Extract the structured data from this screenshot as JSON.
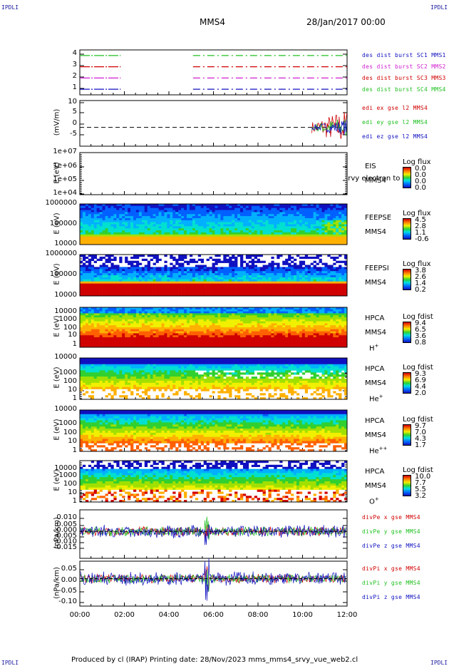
{
  "page": {
    "corner_left": "IPDLI",
    "corner_right": "IPDLI",
    "title": "MMS4",
    "date": "28/Jan/2017 00:00",
    "footer": "Produced by cl (IRAP)   Printing date: 28/Nov/2023   mms_mms4_srvy_vue_web2.cl"
  },
  "colors": {
    "red": "#d00000",
    "green": "#20c020",
    "blue": "#1010c0",
    "magenta": "#d020d0",
    "orange": "#ff8000",
    "yellow": "#f0f000"
  },
  "x_ticks": [
    "00:00",
    "02:00",
    "04:00",
    "06:00",
    "08:00",
    "10:00",
    "12:00"
  ],
  "panels": [
    {
      "id": "burst",
      "ylabel": "",
      "yticks": [
        "4",
        "3",
        "2",
        "1"
      ],
      "legend": [
        {
          "text": "des dist burst SC1 MMS1",
          "color": "#1010c0"
        },
        {
          "text": "des dist burst SC2 MMS2",
          "color": "#d020d0"
        },
        {
          "text": "des dist burst SC3 MMS3",
          "color": "#d00000"
        },
        {
          "text": "des dist burst SC4 MMS4",
          "color": "#20c020"
        }
      ]
    },
    {
      "id": "edi",
      "ylabel": "(mV/m)",
      "yticks": [
        "10",
        "5",
        "0",
        "-5"
      ],
      "legend": [
        {
          "text": "edi ex gse l2 MMS4",
          "color": "#d00000"
        },
        {
          "text": "edi ey gse l2 MMS4",
          "color": "#20c020"
        },
        {
          "text": "edi ez gse l2 MMS4",
          "color": "#1010c0"
        }
      ]
    },
    {
      "id": "eis",
      "ylabel": "E (eV)",
      "yticks": [
        "1e+07",
        "1e+06",
        "1e+05",
        "1e+04"
      ],
      "inst": [
        "EIS",
        "MMS4"
      ],
      "overlay": "srvy electron to",
      "cb_title": "Log flux",
      "cb_values": [
        "0.0",
        "0.0",
        "0.0",
        "0.0"
      ]
    },
    {
      "id": "feeps_e",
      "ylabel": "E (eV)",
      "yticks": [
        "1000000",
        "100000",
        "10000"
      ],
      "inst": [
        "FEEPSE",
        "MMS4"
      ],
      "cb_title": "Log flux",
      "cb_values": [
        "4.5",
        "2.8",
        "1.1",
        "-0.6"
      ]
    },
    {
      "id": "feeps_i",
      "ylabel": "E (eV)",
      "yticks": [
        "1000000",
        "100000",
        "10000"
      ],
      "inst": [
        "FEEPSI",
        "MMS4"
      ],
      "cb_title": "Log flux",
      "cb_values": [
        "3.8",
        "2.6",
        "1.4",
        "0.2"
      ]
    },
    {
      "id": "hpca_h",
      "ylabel": "E (eV)",
      "yticks": [
        "10000",
        "1000",
        "100",
        "10",
        "1"
      ],
      "inst": [
        "HPCA",
        "MMS4"
      ],
      "species": "H",
      "charge": "+",
      "cb_title": "Log fdist",
      "cb_values": [
        "9.4",
        "6.5",
        "3.6",
        "0.8"
      ]
    },
    {
      "id": "hpca_he",
      "ylabel": "E (eV)",
      "yticks": [
        "10000",
        "1000",
        "100",
        "10",
        "1"
      ],
      "inst": [
        "HPCA",
        "MMS4"
      ],
      "species": "He",
      "charge": "+",
      "cb_title": "Log fdist",
      "cb_values": [
        "9.3",
        "6.9",
        "4.4",
        "2.0"
      ]
    },
    {
      "id": "hpca_hepp",
      "ylabel": "E (eV)",
      "yticks": [
        "10000",
        "1000",
        "100",
        "10",
        "1"
      ],
      "inst": [
        "HPCA",
        "MMS4"
      ],
      "species": "He",
      "charge": "++",
      "cb_title": "Log fdist",
      "cb_values": [
        "9.7",
        "7.0",
        "4.3",
        "1.7"
      ]
    },
    {
      "id": "hpca_o",
      "ylabel": "E (eV)",
      "yticks": [
        "10000",
        "1000",
        "100",
        "10",
        "1"
      ],
      "inst": [
        "HPCA",
        "MMS4"
      ],
      "species": "O",
      "charge": "+",
      "cb_title": "Log fdist",
      "cb_values": [
        "10.0",
        "7.7",
        "5.5",
        "3.2"
      ]
    },
    {
      "id": "divpe",
      "ylabel": "(nPa/km)",
      "yticks": [
        "0.010",
        "0.005",
        "0.000",
        "-0.005",
        "-0.010",
        "-0.015"
      ],
      "legend": [
        {
          "text": "divPe x gse MMS4",
          "color": "#d00000"
        },
        {
          "text": "divPe y gse MMS4",
          "color": "#20c020"
        },
        {
          "text": "divPe z gse MMS4",
          "color": "#1010c0"
        }
      ]
    },
    {
      "id": "divpi",
      "ylabel": "(nPa/km)",
      "yticks": [
        "0.05",
        "0.00",
        "-0.05",
        "-0.10"
      ],
      "legend": [
        {
          "text": "divPi x gse MMS4",
          "color": "#d00000"
        },
        {
          "text": "divPi y gse MMS4",
          "color": "#20c020"
        },
        {
          "text": "divPi z gse MMS4",
          "color": "#1010c0"
        }
      ]
    }
  ],
  "chart_data": {
    "type": "heatmap",
    "x_range": [
      "00:00",
      "12:00"
    ],
    "panels": [
      {
        "id": "burst",
        "type": "line",
        "yrange": [
          0.5,
          4.5
        ],
        "series": [
          {
            "name": "des dist burst SC1 MMS1",
            "y": 1,
            "intervals": [
              [
                "00:00",
                "01:50"
              ],
              [
                "05:05",
                "12:00"
              ]
            ]
          },
          {
            "name": "des dist burst SC2 MMS2",
            "y": 2,
            "intervals": [
              [
                "00:00",
                "01:50"
              ],
              [
                "05:05",
                "12:00"
              ]
            ]
          },
          {
            "name": "des dist burst SC3 MMS3",
            "y": 3,
            "intervals": [
              [
                "00:00",
                "01:50"
              ],
              [
                "05:05",
                "12:00"
              ]
            ]
          },
          {
            "name": "des dist burst SC4 MMS4",
            "y": 4,
            "intervals": [
              [
                "00:00",
                "01:50"
              ],
              [
                "05:05",
                "12:00"
              ]
            ]
          }
        ]
      },
      {
        "id": "edi",
        "type": "line",
        "yrange": [
          -7,
          10
        ],
        "series": [
          {
            "name": "edi ex gse l2 MMS4",
            "active": [
              "10:25",
              "12:00"
            ],
            "amplitude": 7
          },
          {
            "name": "edi ey gse l2 MMS4",
            "active": [
              "10:25",
              "12:00"
            ],
            "amplitude": 4
          },
          {
            "name": "edi ez gse l2 MMS4",
            "active": [
              "10:25",
              "12:00"
            ],
            "amplitude": 3
          }
        ]
      },
      {
        "id": "eis",
        "type": "heatmap",
        "ylog": true,
        "yrange": [
          10000.0,
          10000000.0
        ],
        "data": "none"
      },
      {
        "id": "feeps_e",
        "type": "heatmap",
        "ylog": true,
        "yrange": [
          10000.0,
          1000000.0
        ],
        "clim": [
          -0.6,
          4.5
        ]
      },
      {
        "id": "feeps_i",
        "type": "heatmap",
        "ylog": true,
        "yrange": [
          10000.0,
          1000000.0
        ],
        "clim": [
          0.2,
          3.8
        ]
      },
      {
        "id": "hpca_h",
        "type": "heatmap",
        "ylog": true,
        "yrange": [
          1,
          10000.0
        ],
        "clim": [
          0.8,
          9.4
        ]
      },
      {
        "id": "hpca_he",
        "type": "heatmap",
        "ylog": true,
        "yrange": [
          1,
          10000.0
        ],
        "clim": [
          2.0,
          9.3
        ]
      },
      {
        "id": "hpca_hepp",
        "type": "heatmap",
        "ylog": true,
        "yrange": [
          1,
          10000.0
        ],
        "clim": [
          1.7,
          9.7
        ]
      },
      {
        "id": "hpca_o",
        "type": "heatmap",
        "ylog": true,
        "yrange": [
          1,
          10000.0
        ],
        "clim": [
          3.2,
          10.0
        ]
      },
      {
        "id": "divpe",
        "type": "line",
        "yrange": [
          -0.015,
          0.012
        ],
        "series": [
          {
            "name": "divPe x gse MMS4",
            "amplitude": 0.003
          },
          {
            "name": "divPe y gse MMS4",
            "amplitude": 0.003
          },
          {
            "name": "divPe z gse MMS4",
            "amplitude": 0.004
          }
        ]
      },
      {
        "id": "divpi",
        "type": "line",
        "yrange": [
          -0.11,
          0.07
        ],
        "series": [
          {
            "name": "divPi x gse MMS4",
            "amplitude": 0.02
          },
          {
            "name": "divPi y gse MMS4",
            "amplitude": 0.02
          },
          {
            "name": "divPi z gse MMS4",
            "amplitude": 0.03
          }
        ]
      }
    ]
  }
}
